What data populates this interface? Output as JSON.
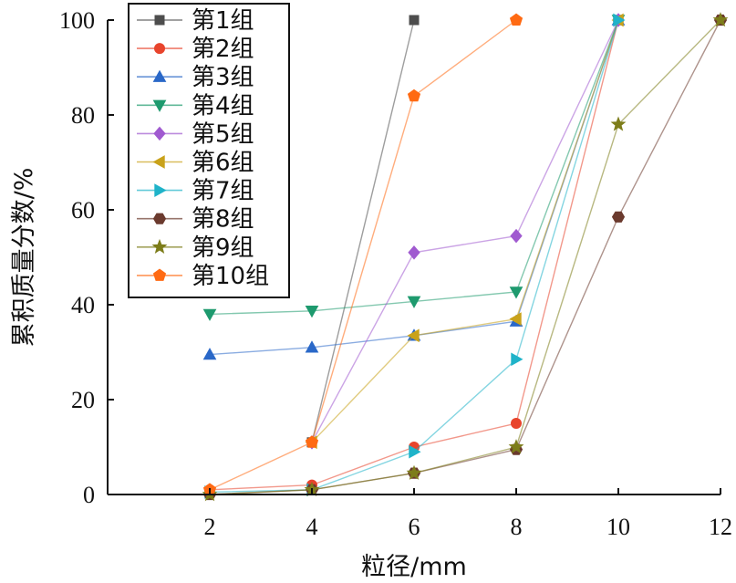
{
  "chart_data": {
    "type": "line",
    "xlabel": "粒径/mm",
    "ylabel": "累积质量分数/%",
    "xlim": [
      0,
      12
    ],
    "ylim": [
      0,
      100
    ],
    "x_ticks": [
      "2",
      "4",
      "6",
      "8",
      "10",
      "12"
    ],
    "y_ticks": [
      "0",
      "20",
      "40",
      "60",
      "80",
      "100"
    ],
    "grid": false,
    "legend_position": "top-left",
    "series": [
      {
        "name": "第1组",
        "color": "#4d4d4d",
        "marker": "square",
        "points": [
          [
            4,
            11
          ],
          [
            6,
            100
          ]
        ]
      },
      {
        "name": "第2组",
        "color": "#e8442c",
        "marker": "circle",
        "points": [
          [
            2,
            1
          ],
          [
            4,
            2
          ],
          [
            6,
            10
          ],
          [
            8,
            15
          ],
          [
            10,
            100
          ]
        ]
      },
      {
        "name": "第3组",
        "color": "#2a68c8",
        "marker": "triangle-up",
        "points": [
          [
            2,
            29.5
          ],
          [
            4,
            31
          ],
          [
            6,
            33.5
          ],
          [
            8,
            36.5
          ],
          [
            10,
            100
          ]
        ]
      },
      {
        "name": "第4组",
        "color": "#1e9a6e",
        "marker": "triangle-down",
        "points": [
          [
            2,
            38
          ],
          [
            4,
            38.7
          ],
          [
            6,
            40.7
          ],
          [
            8,
            42.7
          ],
          [
            10,
            100
          ]
        ]
      },
      {
        "name": "第5组",
        "color": "#a05ad0",
        "marker": "diamond",
        "points": [
          [
            4,
            11
          ],
          [
            6,
            51
          ],
          [
            8,
            54.5
          ],
          [
            10,
            100
          ]
        ]
      },
      {
        "name": "第6组",
        "color": "#c9a21a",
        "marker": "triangle-left",
        "points": [
          [
            4,
            11
          ],
          [
            6,
            33.5
          ],
          [
            8,
            37
          ],
          [
            10,
            100
          ]
        ]
      },
      {
        "name": "第7组",
        "color": "#1fb3c9",
        "marker": "triangle-right",
        "points": [
          [
            2,
            0.5
          ],
          [
            4,
            1
          ],
          [
            6,
            9
          ],
          [
            8,
            28.5
          ],
          [
            10,
            100
          ]
        ]
      },
      {
        "name": "第8组",
        "color": "#6b3a2e",
        "marker": "hexagon",
        "points": [
          [
            2,
            0
          ],
          [
            4,
            1
          ],
          [
            6,
            4.5
          ],
          [
            8,
            9.5
          ],
          [
            10,
            58.5
          ],
          [
            12,
            100
          ]
        ]
      },
      {
        "name": "第9组",
        "color": "#7d7d1a",
        "marker": "star",
        "points": [
          [
            2,
            0
          ],
          [
            4,
            1
          ],
          [
            6,
            4.5
          ],
          [
            8,
            10
          ],
          [
            10,
            78
          ],
          [
            12,
            100
          ]
        ]
      },
      {
        "name": "第10组",
        "color": "#ff6a13",
        "marker": "pentagon",
        "points": [
          [
            2,
            1
          ],
          [
            4,
            11
          ],
          [
            6,
            84
          ],
          [
            8,
            100
          ]
        ]
      }
    ]
  }
}
